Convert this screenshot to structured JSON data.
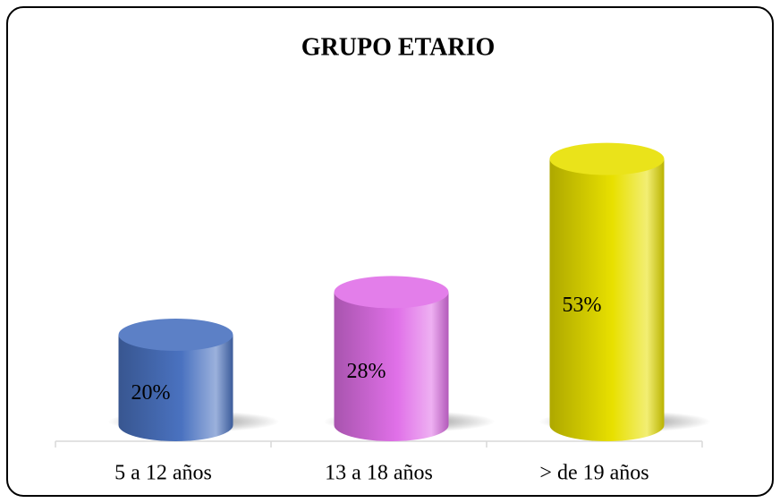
{
  "chart_data": {
    "type": "cylinder",
    "title": "GRUPO ETARIO",
    "categories": [
      "5 a 12 años",
      "13 a 18 años",
      "> de 19 años"
    ],
    "values": [
      20,
      28,
      53
    ],
    "value_labels": [
      "20%",
      "28%",
      "53%"
    ],
    "colors": [
      "#4a72c0",
      "#e070e8",
      "#e8e000"
    ]
  }
}
